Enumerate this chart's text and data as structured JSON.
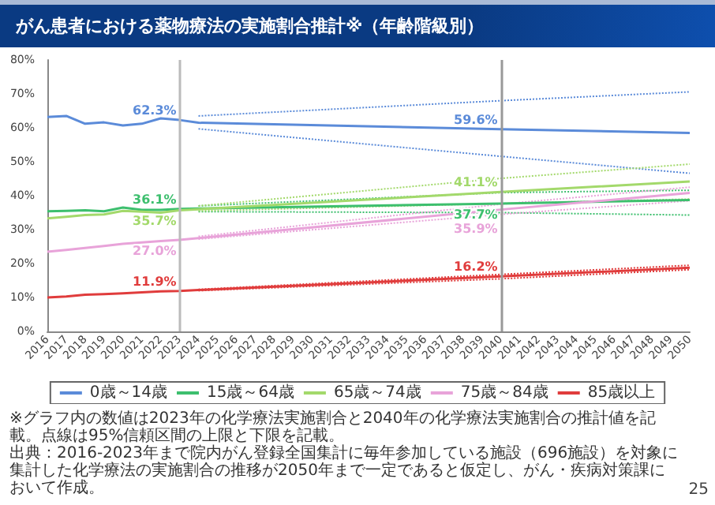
{
  "chart_data": {
    "type": "line",
    "title": "がん患者における薬物療法の実施割合推計※（年齢階級別）",
    "categories": [
      "2016",
      "2017",
      "2018",
      "2019",
      "2020",
      "2021",
      "2022",
      "2023",
      "2024",
      "2025",
      "2026",
      "2027",
      "2028",
      "2029",
      "2030",
      "2031",
      "2032",
      "2033",
      "2034",
      "2035",
      "2036",
      "2037",
      "2038",
      "2039",
      "2040",
      "2041",
      "2042",
      "2043",
      "2044",
      "2045",
      "2046",
      "2047",
      "2048",
      "2049",
      "2050"
    ],
    "series": [
      {
        "name": "0歳～14歳",
        "color": "#5b8bd9",
        "values": [
          63.2,
          63.5,
          61.2,
          61.6,
          60.7,
          61.2,
          62.8,
          62.3,
          61.5,
          null,
          null,
          null,
          null,
          null,
          null,
          null,
          null,
          null,
          null,
          null,
          null,
          null,
          null,
          null,
          59.6,
          null,
          null,
          null,
          null,
          null,
          null,
          null,
          null,
          null,
          58.5
        ],
        "value_labels": [
          null,
          null,
          null,
          null,
          null,
          null,
          null,
          "62.3%",
          null,
          null,
          null,
          null,
          null,
          null,
          null,
          null,
          null,
          null,
          null,
          null,
          null,
          null,
          null,
          null,
          "59.6%",
          null,
          null,
          null,
          null,
          null,
          null,
          null,
          null,
          null,
          null
        ]
      },
      {
        "name": "15歳～64歳",
        "color": "#3dbf6e",
        "values": [
          35.4,
          35.5,
          35.7,
          35.4,
          36.5,
          35.8,
          35.8,
          36.1,
          36.2,
          null,
          null,
          null,
          null,
          null,
          null,
          null,
          null,
          null,
          null,
          null,
          null,
          null,
          null,
          null,
          37.7,
          null,
          null,
          null,
          null,
          null,
          null,
          null,
          null,
          null,
          38.7
        ],
        "value_labels": [
          null,
          null,
          null,
          null,
          null,
          null,
          null,
          "36.1%",
          null,
          null,
          null,
          null,
          null,
          null,
          null,
          null,
          null,
          null,
          null,
          null,
          null,
          null,
          null,
          null,
          "37.7%",
          null,
          null,
          null,
          null,
          null,
          null,
          null,
          null,
          null,
          null
        ]
      },
      {
        "name": "65歳～74歳",
        "color": "#a3d96b",
        "values": [
          33.3,
          33.8,
          34.3,
          34.5,
          35.5,
          35.3,
          35.0,
          35.7,
          36.0,
          null,
          null,
          null,
          null,
          null,
          null,
          null,
          null,
          null,
          null,
          null,
          null,
          null,
          null,
          null,
          41.1,
          null,
          null,
          null,
          null,
          null,
          null,
          null,
          null,
          null,
          44.2
        ],
        "value_labels": [
          null,
          null,
          null,
          null,
          null,
          null,
          null,
          "35.7%",
          null,
          null,
          null,
          null,
          null,
          null,
          null,
          null,
          null,
          null,
          null,
          null,
          null,
          null,
          null,
          null,
          "41.1%",
          null,
          null,
          null,
          null,
          null,
          null,
          null,
          null,
          null,
          null
        ]
      },
      {
        "name": "75歳～84歳",
        "color": "#e8a3d9",
        "values": [
          23.5,
          24.0,
          24.6,
          25.2,
          25.8,
          26.2,
          26.6,
          27.0,
          27.5,
          null,
          null,
          null,
          null,
          null,
          null,
          null,
          null,
          null,
          null,
          null,
          null,
          null,
          null,
          null,
          35.9,
          null,
          null,
          null,
          null,
          null,
          null,
          null,
          null,
          null,
          40.8
        ],
        "value_labels": [
          null,
          null,
          null,
          null,
          null,
          null,
          null,
          "27.0%",
          null,
          null,
          null,
          null,
          null,
          null,
          null,
          null,
          null,
          null,
          null,
          null,
          null,
          null,
          null,
          null,
          "35.9%",
          null,
          null,
          null,
          null,
          null,
          null,
          null,
          null,
          null,
          null
        ]
      },
      {
        "name": "85歳以上",
        "color": "#e03c3c",
        "values": [
          10.0,
          10.3,
          10.8,
          11.0,
          11.2,
          11.5,
          11.8,
          11.9,
          12.2,
          null,
          null,
          null,
          null,
          null,
          null,
          null,
          null,
          null,
          null,
          null,
          null,
          null,
          null,
          null,
          16.2,
          null,
          null,
          null,
          null,
          null,
          null,
          null,
          null,
          null,
          18.8
        ],
        "value_labels": [
          null,
          null,
          null,
          null,
          null,
          null,
          null,
          "11.9%",
          null,
          null,
          null,
          null,
          null,
          null,
          null,
          null,
          null,
          null,
          null,
          null,
          null,
          null,
          null,
          null,
          "16.2%",
          null,
          null,
          null,
          null,
          null,
          null,
          null,
          null,
          null,
          null
        ]
      },
      {
        "color": "#5b8bd9",
        "line_style": "dotted",
        "values": [
          null,
          null,
          null,
          null,
          null,
          null,
          null,
          null,
          63.5,
          null,
          null,
          null,
          null,
          null,
          null,
          null,
          null,
          null,
          null,
          null,
          null,
          null,
          null,
          null,
          68.0,
          null,
          null,
          null,
          null,
          null,
          null,
          null,
          null,
          null,
          70.6
        ]
      },
      {
        "color": "#5b8bd9",
        "line_style": "dotted",
        "values": [
          null,
          null,
          null,
          null,
          null,
          null,
          null,
          null,
          59.7,
          null,
          null,
          null,
          null,
          null,
          null,
          null,
          null,
          null,
          null,
          null,
          null,
          null,
          null,
          null,
          51.6,
          null,
          null,
          null,
          null,
          null,
          null,
          null,
          null,
          null,
          46.6
        ]
      },
      {
        "color": "#3dbf6e",
        "line_style": "dotted",
        "values": [
          null,
          null,
          null,
          null,
          null,
          null,
          null,
          null,
          37.0,
          null,
          null,
          null,
          null,
          null,
          null,
          null,
          null,
          null,
          null,
          null,
          null,
          null,
          null,
          null,
          40.9,
          null,
          null,
          null,
          null,
          null,
          null,
          null,
          null,
          null,
          41.6
        ]
      },
      {
        "color": "#3dbf6e",
        "line_style": "dotted",
        "values": [
          null,
          null,
          null,
          null,
          null,
          null,
          null,
          null,
          35.3,
          null,
          null,
          null,
          null,
          null,
          null,
          null,
          null,
          null,
          null,
          null,
          null,
          null,
          null,
          null,
          35.0,
          null,
          null,
          null,
          null,
          null,
          null,
          null,
          null,
          null,
          34.3
        ]
      },
      {
        "color": "#a3d96b",
        "line_style": "dotted",
        "values": [
          null,
          null,
          null,
          null,
          null,
          null,
          null,
          null,
          37.0,
          null,
          null,
          null,
          null,
          null,
          null,
          null,
          null,
          null,
          null,
          null,
          null,
          null,
          null,
          null,
          45.1,
          null,
          null,
          null,
          null,
          null,
          null,
          null,
          null,
          null,
          49.3
        ]
      },
      {
        "color": "#a3d96b",
        "line_style": "dotted",
        "values": [
          null,
          null,
          null,
          null,
          null,
          null,
          null,
          null,
          35.5,
          null,
          null,
          null,
          null,
          null,
          null,
          null,
          null,
          null,
          null,
          null,
          null,
          null,
          null,
          null,
          37.7,
          null,
          null,
          null,
          null,
          null,
          null,
          null,
          null,
          null,
          39.0
        ]
      },
      {
        "color": "#e8a3d9",
        "line_style": "dotted",
        "values": [
          null,
          null,
          null,
          null,
          null,
          null,
          null,
          null,
          28.0,
          null,
          null,
          null,
          null,
          null,
          null,
          null,
          null,
          null,
          null,
          null,
          null,
          null,
          null,
          null,
          37.5,
          null,
          null,
          null,
          null,
          null,
          null,
          null,
          null,
          null,
          42.5
        ]
      },
      {
        "color": "#e8a3d9",
        "line_style": "dotted",
        "values": [
          null,
          null,
          null,
          null,
          null,
          null,
          null,
          null,
          27.2,
          null,
          null,
          null,
          null,
          null,
          null,
          null,
          null,
          null,
          null,
          null,
          null,
          null,
          null,
          null,
          34.5,
          null,
          null,
          null,
          null,
          null,
          null,
          null,
          null,
          null,
          38.5
        ]
      },
      {
        "color": "#e03c3c",
        "line_style": "dotted",
        "values": [
          null,
          null,
          null,
          null,
          null,
          null,
          null,
          null,
          12.4,
          null,
          null,
          null,
          null,
          null,
          null,
          null,
          null,
          null,
          null,
          null,
          null,
          null,
          null,
          null,
          16.8,
          null,
          null,
          null,
          null,
          null,
          null,
          null,
          null,
          null,
          19.5
        ]
      },
      {
        "color": "#e03c3c",
        "line_style": "dotted",
        "values": [
          null,
          null,
          null,
          null,
          null,
          null,
          null,
          null,
          12.0,
          null,
          null,
          null,
          null,
          null,
          null,
          null,
          null,
          null,
          null,
          null,
          null,
          null,
          null,
          null,
          15.5,
          null,
          null,
          null,
          null,
          null,
          null,
          null,
          null,
          null,
          18.2
        ]
      }
    ],
    "ylim": [
      0,
      80
    ],
    "yticks": [
      {
        "value": 0,
        "label": "0%"
      },
      {
        "value": 10,
        "label": "10%"
      },
      {
        "value": 20,
        "label": "20%"
      },
      {
        "value": 30,
        "label": "30%"
      },
      {
        "value": 40,
        "label": "40%"
      },
      {
        "value": 50,
        "label": "50%"
      },
      {
        "value": 60,
        "label": "60%"
      },
      {
        "value": 70,
        "label": "70%"
      },
      {
        "value": 80,
        "label": "80%"
      }
    ],
    "ref_lines": [
      {
        "axis": "x",
        "value": "2023",
        "color": "#bbbbbb"
      },
      {
        "axis": "x",
        "value": "2040",
        "color": "#999999"
      }
    ],
    "grid": false,
    "legend": "bottom",
    "marker": "none",
    "line_style": "solid",
    "annotations": [
      "※グラフ内の数値は2023年の化学療法実施割合と2040年の化学療法実施割合の推計値を記載。点線は95%信頼区間の上限と下限を記載。",
      "出典：2016-2023年まで院内がん登録全国集計に毎年参加している施設（696施設）を対象に集計した化学療法の実施割合の推移が2050年まで一定であると仮定し、がん・疾病対策課において作成。",
      "25"
    ]
  }
}
